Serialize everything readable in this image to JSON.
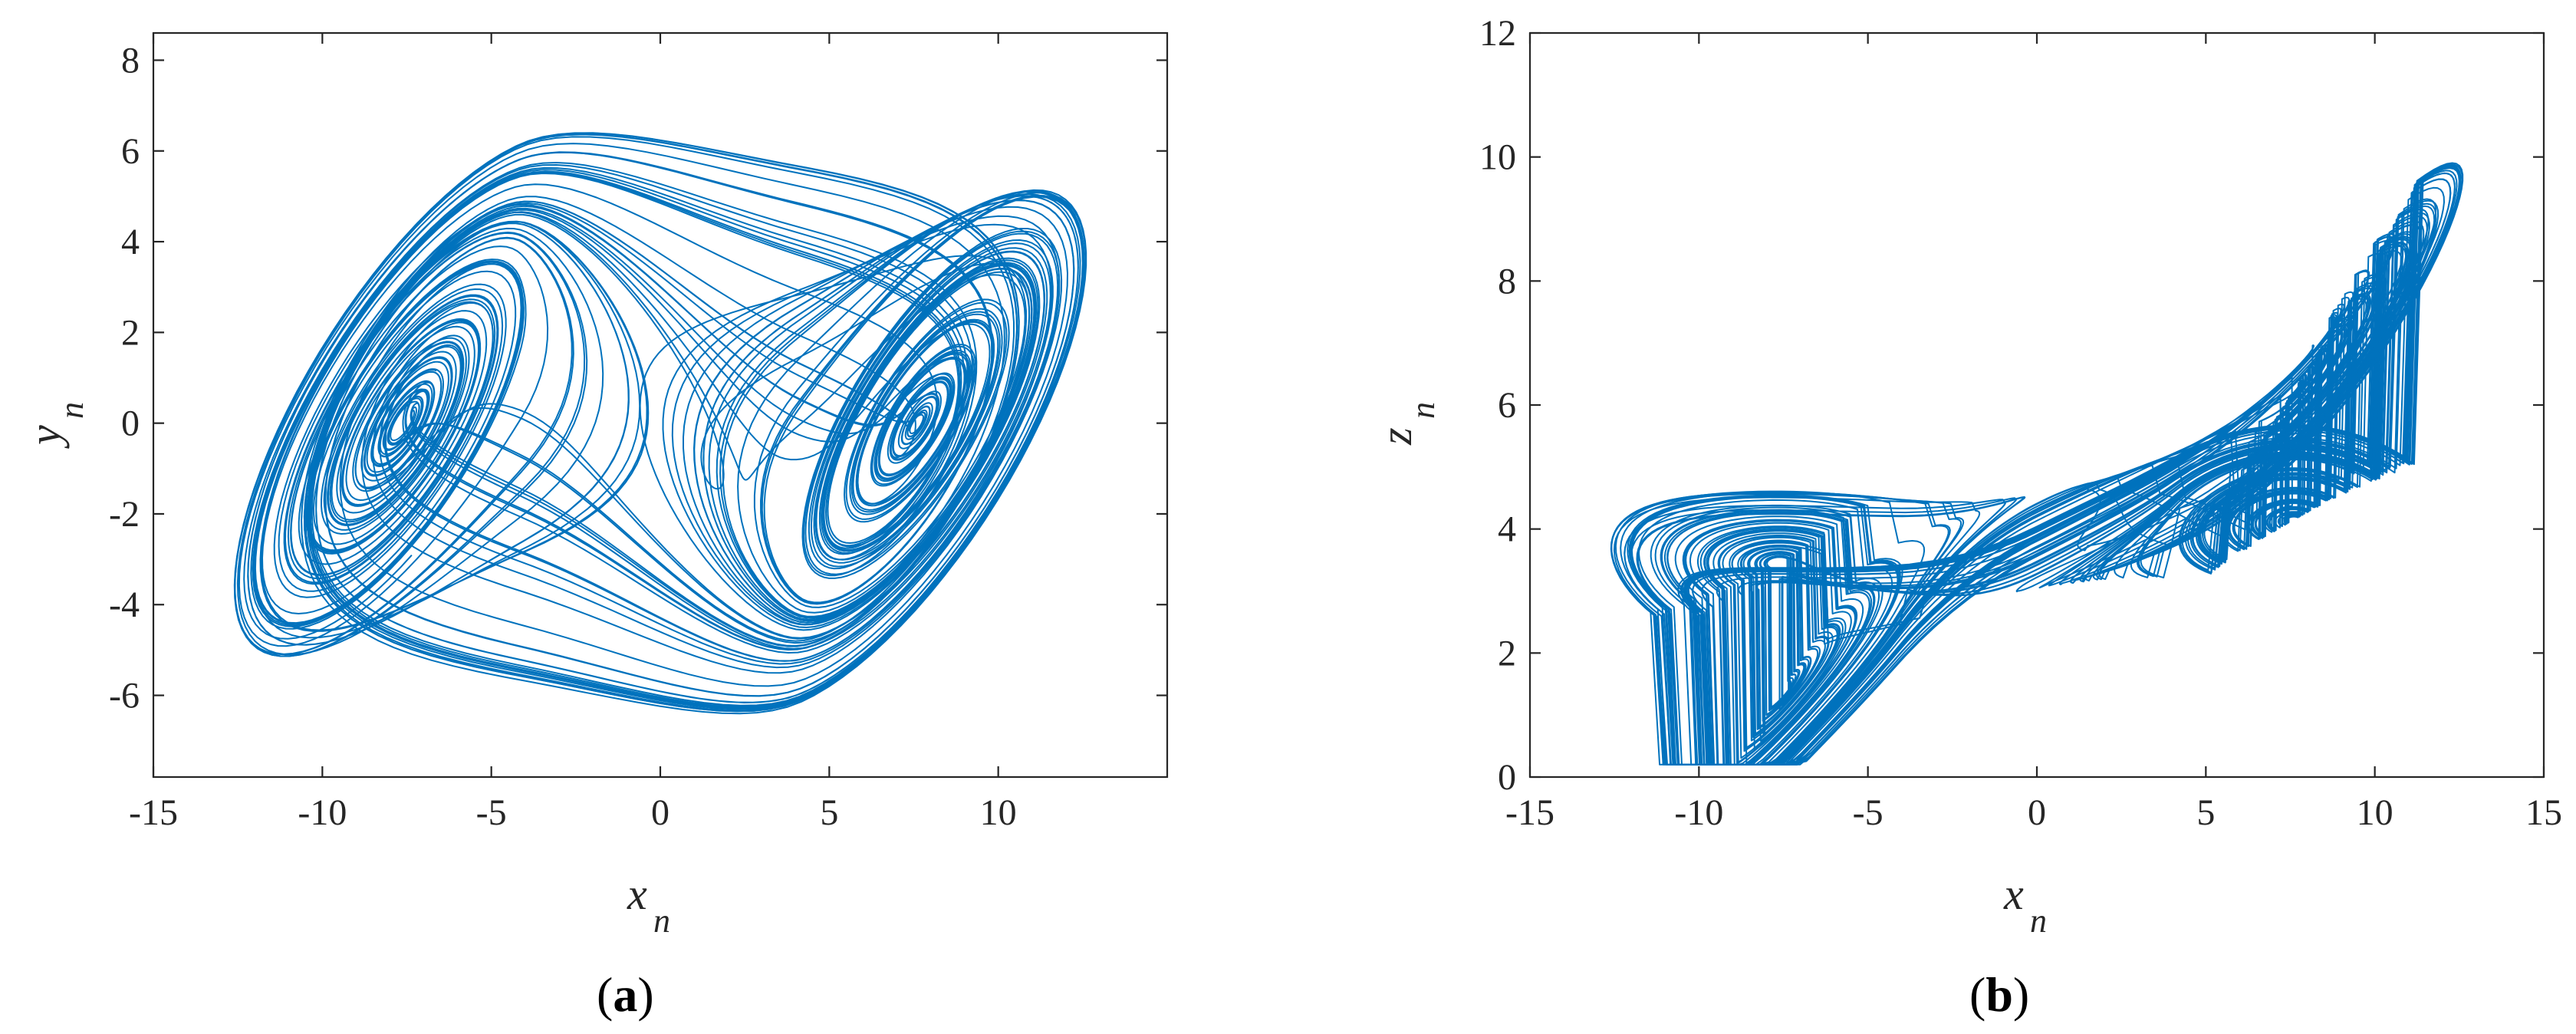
{
  "chart_data": [
    {
      "type": "line",
      "panel_label": "a",
      "x_axis_label": {
        "base": "x",
        "sub": "n"
      },
      "y_axis_label": {
        "base": "y",
        "sub": "n"
      },
      "xlim": [
        -15,
        15
      ],
      "ylim": [
        -7.8,
        8.6
      ],
      "xticks": [
        -15,
        -10,
        -5,
        0,
        5,
        10
      ],
      "yticks": [
        -6,
        -4,
        -2,
        0,
        2,
        4,
        6,
        8
      ],
      "xtick_labels": [
        "-15",
        "-10",
        "-5",
        "0",
        "5",
        "10"
      ],
      "ytick_labels": [
        "-6",
        "-4",
        "-2",
        "0",
        "2",
        "4",
        "6",
        "8"
      ],
      "grid": false,
      "series_color": "#0072BD",
      "attractor": {
        "description_of_shape": "double-scroll chaotic attractor in the x-y plane",
        "left_lobe_center": [
          -5.8,
          0.2
        ],
        "right_lobe_center": [
          6.0,
          0.0
        ],
        "x_range": [
          -12.3,
          12.6
        ],
        "y_range": [
          -6.8,
          6.4
        ]
      }
    },
    {
      "type": "line",
      "panel_label": "b",
      "x_axis_label": {
        "base": "x",
        "sub": "n"
      },
      "y_axis_label": {
        "base": "z",
        "sub": "n"
      },
      "xlim": [
        -15,
        15
      ],
      "ylim": [
        0,
        12
      ],
      "xticks": [
        -15,
        -10,
        -5,
        0,
        5,
        10,
        15
      ],
      "yticks": [
        0,
        2,
        4,
        6,
        8,
        10,
        12
      ],
      "xtick_labels": [
        "-15",
        "-10",
        "-5",
        "0",
        "5",
        "10",
        "15"
      ],
      "ytick_labels": [
        "0",
        "2",
        "4",
        "6",
        "8",
        "10",
        "12"
      ],
      "grid": false,
      "series_color": "#0072BD",
      "attractor": {
        "description_of_shape": "bowl-shaped chaotic attractor in the x-z plane",
        "x_range": [
          -12.3,
          12.6
        ],
        "z_range": [
          0,
          10.4
        ],
        "z_band_center": 3.8
      }
    }
  ]
}
